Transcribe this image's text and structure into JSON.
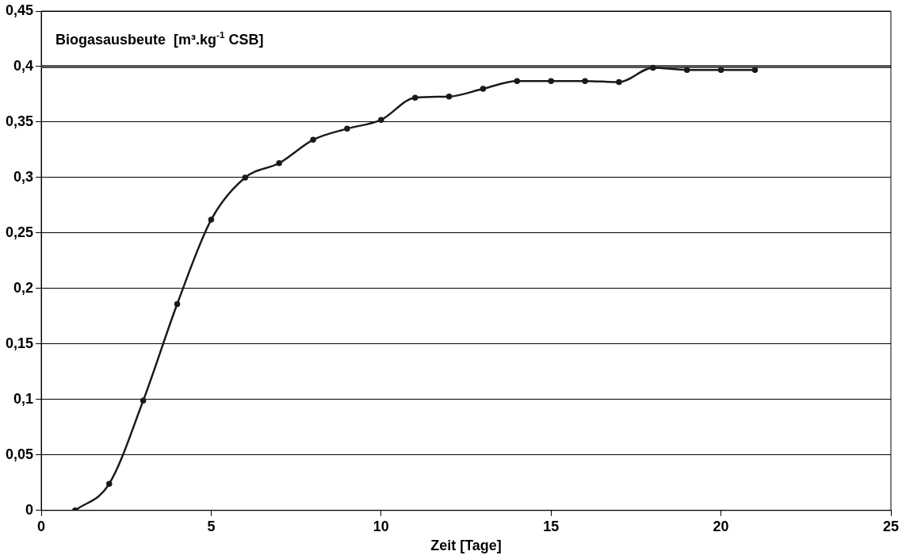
{
  "chart_data": {
    "type": "line",
    "ylabel": "Biogasausbeute  [m³.kg$^{-1}$ CSB]",
    "xlabel": "Zeit [Tage]",
    "x": [
      1,
      2,
      3,
      4,
      5,
      6,
      7,
      8,
      9,
      10,
      11,
      12,
      13,
      14,
      15,
      16,
      17,
      18,
      19,
      20,
      21
    ],
    "series": [
      {
        "color": "#1a1a1a",
        "values": [
          0,
          0.024,
          0.099,
          0.186,
          0.262,
          0.3,
          0.313,
          0.334,
          0.344,
          0.352,
          0.372,
          0.373,
          0.38,
          0.387,
          0.387,
          0.387,
          0.386,
          0.399,
          0.397,
          0.397,
          0.397
        ]
      }
    ],
    "xlim": [
      0,
      25
    ],
    "xticks": [
      0,
      5,
      10,
      15,
      20,
      25
    ],
    "ylim": [
      0,
      0.45
    ],
    "yticks": [
      {
        "value": 0,
        "label": "0"
      },
      {
        "value": 0.05,
        "label": "0,05"
      },
      {
        "value": 0.1,
        "label": "0,1"
      },
      {
        "value": 0.15,
        "label": "0,15"
      },
      {
        "value": 0.2,
        "label": "0,2"
      },
      {
        "value": 0.25,
        "label": "0,25"
      },
      {
        "value": 0.3,
        "label": "0,3"
      },
      {
        "value": 0.35,
        "label": "0,35"
      },
      {
        "value": 0.4,
        "label": "0,4"
      },
      {
        "value": 0.45,
        "label": "0,45"
      }
    ],
    "ref_lines": [
      {
        "axis": "y",
        "value": 0.4,
        "color": "#555555"
      }
    ],
    "grid": "y",
    "legend": false,
    "marker": "circle",
    "line_style": "solid"
  }
}
